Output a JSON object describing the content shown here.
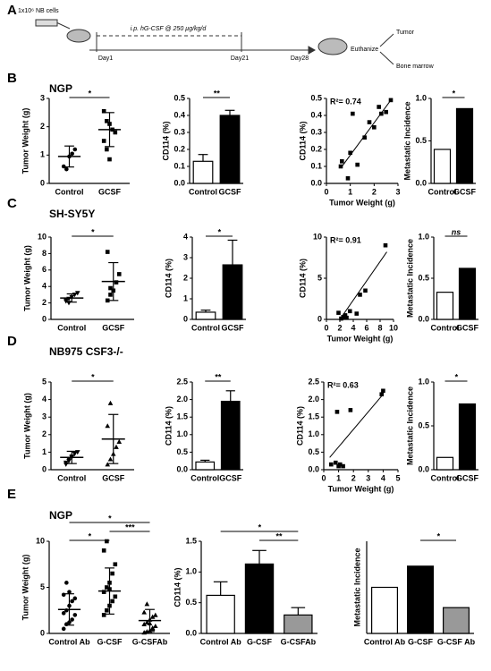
{
  "schematic": {
    "label": "A",
    "cells": "1x10⁶ NB cells",
    "treatment": "i.p. hG-CSF @ 250 µg/kg/d",
    "days": [
      "Day1",
      "Day21",
      "Day28"
    ],
    "endpoint": "Euthanize",
    "outcomes": [
      "Tumor",
      "Bone marrow"
    ]
  },
  "panels": [
    {
      "label": "B",
      "title": "NGP"
    },
    {
      "label": "C",
      "title": "SH-SY5Y"
    },
    {
      "label": "D",
      "title": "NB975 CSF3-/-"
    },
    {
      "label": "E",
      "title": "NGP"
    }
  ],
  "chart_data": [
    {
      "type": "dot",
      "ylabel": "Tumor Weight (g)",
      "categories": [
        "Control",
        "GCSF"
      ],
      "markers": [
        "circle",
        "square"
      ],
      "points": [
        [
          0.6,
          0.5,
          0.95,
          1.05,
          1.2
        ],
        [
          2.55,
          2.2,
          2.1,
          1.9,
          1.8,
          1.5,
          1.2,
          0.85
        ]
      ],
      "means": [
        0.95,
        1.9
      ],
      "sd": [
        0.37,
        0.6
      ],
      "ylim": [
        0,
        3
      ],
      "yticks": [
        0,
        1,
        2,
        3
      ],
      "significance": [
        {
          "text": "*",
          "between": [
            "Control",
            "GCSF"
          ]
        }
      ]
    },
    {
      "type": "bar",
      "ylabel": "CD114 (%)",
      "categories": [
        "Control",
        "GCSF"
      ],
      "values": [
        0.13,
        0.4
      ],
      "errors": [
        0.04,
        0.03
      ],
      "colors": [
        "#ffffff",
        "#000000"
      ],
      "ylim": [
        0,
        0.5
      ],
      "yticks": [
        {
          "value": 0,
          "label": "0.0"
        },
        0.1,
        0.2,
        0.3,
        0.4,
        0.5
      ],
      "significance": [
        {
          "text": "**",
          "between": [
            "Control",
            "GCSF"
          ]
        }
      ]
    },
    {
      "type": "scatter",
      "ylabel": "CD114 (%)",
      "xlabel": "Tumor Weight (g)",
      "annotation": "R²= 0.74",
      "marker": "square",
      "x": [
        0.6,
        0.65,
        0.9,
        1.0,
        1.1,
        1.3,
        1.6,
        1.8,
        2.0,
        2.2,
        2.3,
        2.5,
        2.7
      ],
      "y": [
        0.1,
        0.13,
        0.03,
        0.18,
        0.41,
        0.11,
        0.27,
        0.36,
        0.33,
        0.45,
        0.41,
        0.42,
        0.49
      ],
      "fit": {
        "x": [
          0.6,
          2.7
        ],
        "y": [
          0.09,
          0.49
        ]
      },
      "xlim": [
        0,
        3
      ],
      "xticks": [
        0,
        1,
        2,
        3
      ],
      "ylim": [
        0,
        0.5
      ],
      "yticks": [
        {
          "value": 0,
          "label": "0.0"
        },
        0.1,
        0.2,
        0.3,
        0.4,
        0.5
      ]
    },
    {
      "type": "bar",
      "ylabel": "Metastatic Incidence",
      "categories": [
        "Control",
        "GCSF"
      ],
      "values": [
        0.4,
        0.88
      ],
      "colors": [
        "#ffffff",
        "#000000"
      ],
      "ylim": [
        0,
        1
      ],
      "yticks": [
        {
          "value": 0,
          "label": "0.0"
        },
        0.5,
        {
          "value": 1,
          "label": "1.0"
        }
      ],
      "significance": [
        {
          "text": "*",
          "between": [
            "Control",
            "GCSF"
          ]
        }
      ]
    },
    {
      "type": "dot",
      "ylabel": "Tumor Weight (g)",
      "categories": [
        "Control",
        "GCSF"
      ],
      "markers": [
        "triangle-down",
        "square"
      ],
      "points": [
        [
          2.2,
          2.5,
          2.7,
          3.0,
          3.2,
          2.4,
          2.0
        ],
        [
          2.3,
          3.0,
          3.5,
          4.5,
          5.5,
          8.2,
          3.8
        ]
      ],
      "means": [
        2.6,
        4.6
      ],
      "sd": [
        0.5,
        2.3
      ],
      "ylim": [
        0,
        10
      ],
      "yticks": [
        0,
        2,
        4,
        6,
        8,
        10
      ],
      "significance": [
        {
          "text": "*",
          "between": [
            "Control",
            "GCSF"
          ]
        }
      ]
    },
    {
      "type": "bar",
      "ylabel": "CD114 (%)",
      "categories": [
        "Control",
        "GCSF"
      ],
      "values": [
        0.35,
        2.65
      ],
      "errors": [
        0.1,
        1.2
      ],
      "colors": [
        "#ffffff",
        "#000000"
      ],
      "ylim": [
        0,
        4
      ],
      "yticks": [
        0,
        1,
        2,
        3,
        4
      ],
      "significance": [
        {
          "text": "*",
          "between": [
            "Control",
            "GCSF"
          ]
        }
      ]
    },
    {
      "type": "scatter",
      "ylabel": "CD114 (%)",
      "xlabel": "Tumor Weight (g)",
      "annotation": "R²= 0.91",
      "marker": "square",
      "x": [
        1.8,
        2.2,
        2.5,
        2.8,
        3.0,
        3.5,
        4.5,
        5.0,
        5.8,
        8.8
      ],
      "y": [
        0.8,
        0.1,
        0.3,
        0.5,
        0.2,
        1.0,
        0.7,
        3.0,
        3.5,
        9.0
      ],
      "fit": {
        "x": [
          2,
          9
        ],
        "y": [
          0,
          8.2
        ]
      },
      "xlim": [
        0,
        10
      ],
      "xticks": [
        0,
        2,
        4,
        6,
        8,
        10
      ],
      "ylim": [
        0,
        10
      ],
      "yticks": [
        0,
        5,
        10
      ]
    },
    {
      "type": "bar",
      "ylabel": "Metastatic Incidence",
      "categories": [
        "Control",
        "GCSF"
      ],
      "values": [
        0.33,
        0.62
      ],
      "colors": [
        "#ffffff",
        "#000000"
      ],
      "ylim": [
        0,
        1
      ],
      "yticks": [
        {
          "value": 0,
          "label": "0.0"
        },
        0.5,
        {
          "value": 1,
          "label": "1.0"
        }
      ],
      "significance": [
        {
          "text": "ns",
          "between": [
            "Control",
            "GCSF"
          ]
        }
      ]
    },
    {
      "type": "dot",
      "ylabel": "Tumor Weight (g)",
      "categories": [
        "Control",
        "GCSF"
      ],
      "markers": [
        "triangle-down",
        "triangle"
      ],
      "points": [
        [
          0.3,
          0.5,
          0.7,
          0.9,
          1.0,
          0.4,
          0.6,
          0.75
        ],
        [
          0.3,
          0.6,
          0.9,
          1.3,
          1.6,
          2.5,
          3.8
        ]
      ],
      "means": [
        0.7,
        1.75
      ],
      "sd": [
        0.35,
        1.4
      ],
      "ylim": [
        0,
        5
      ],
      "yticks": [
        0,
        1,
        2,
        3,
        4,
        5
      ],
      "significance": [
        {
          "text": "*",
          "between": [
            "Control",
            "GCSF"
          ]
        }
      ]
    },
    {
      "type": "bar",
      "ylabel": "CD114 (%)",
      "categories": [
        "Control",
        "GCSF"
      ],
      "values": [
        0.22,
        1.95
      ],
      "errors": [
        0.05,
        0.3
      ],
      "colors": [
        "#ffffff",
        "#000000"
      ],
      "ylim": [
        0,
        2.5
      ],
      "yticks": [
        {
          "value": 0,
          "label": "0.0"
        },
        0.5,
        {
          "value": 1,
          "label": "1.0"
        },
        1.5,
        {
          "value": 2,
          "label": "2.0"
        },
        2.5
      ],
      "significance": [
        {
          "text": "**",
          "between": [
            "Control",
            "GCSF"
          ]
        }
      ]
    },
    {
      "type": "scatter",
      "ylabel": "CD114 (%)",
      "xlabel": "Tumor Weight (g)",
      "annotation": "R²= 0.63",
      "marker": "square",
      "x": [
        0.5,
        0.8,
        1.0,
        1.1,
        1.3,
        0.9,
        1.8,
        3.9,
        4.0
      ],
      "y": [
        0.15,
        0.2,
        0.1,
        0.15,
        0.1,
        1.65,
        1.7,
        2.15,
        2.25
      ],
      "fit": {
        "x": [
          0.4,
          4
        ],
        "y": [
          0.35,
          2.15
        ]
      },
      "xlim": [
        0,
        5
      ],
      "xticks": [
        0,
        1,
        2,
        3,
        4,
        5
      ],
      "ylim": [
        0,
        2.5
      ],
      "yticks": [
        {
          "value": 0,
          "label": "0.0"
        },
        0.5,
        {
          "value": 1,
          "label": "1.0"
        },
        1.5,
        {
          "value": 2,
          "label": "2.0"
        },
        2.5
      ]
    },
    {
      "type": "bar",
      "ylabel": "Metastatic Incidence",
      "categories": [
        "Control",
        "GCSF"
      ],
      "values": [
        0.14,
        0.75
      ],
      "colors": [
        "#ffffff",
        "#000000"
      ],
      "ylim": [
        0,
        1
      ],
      "yticks": [
        {
          "value": 0,
          "label": "0.0"
        },
        0.5,
        {
          "value": 1,
          "label": "1.0"
        }
      ],
      "significance": [
        {
          "text": "*",
          "between": [
            "Control",
            "GCSF"
          ]
        }
      ]
    },
    {
      "type": "dot",
      "ylabel": "Tumor Weight (g)",
      "categories": [
        "Control Ab",
        "G-CSF",
        "G-CSFAb"
      ],
      "markers": [
        "circle",
        "square",
        "triangle"
      ],
      "points": [
        [
          0.5,
          1.0,
          1.2,
          1.5,
          2.0,
          2.2,
          2.5,
          3.0,
          3.5,
          3.8,
          4.2,
          5.5,
          4.5
        ],
        [
          2.0,
          2.5,
          3.0,
          3.5,
          4.0,
          4.5,
          5.0,
          5.5,
          6.5,
          7.5,
          9.0,
          10.0,
          4.8
        ],
        [
          0.1,
          0.2,
          0.3,
          0.5,
          0.8,
          1.0,
          1.2,
          1.5,
          1.8,
          2.0,
          2.3,
          3.2,
          1.1,
          0.6
        ]
      ],
      "means": [
        2.6,
        4.6,
        1.4
      ],
      "sd": [
        1.7,
        2.5,
        1.2
      ],
      "ylim": [
        0,
        10
      ],
      "yticks": [
        0,
        5,
        10
      ],
      "significance": [
        {
          "text": "*",
          "between": [
            "Control Ab",
            "G-CSF"
          ]
        },
        {
          "text": "***",
          "between": [
            "G-CSF",
            "G-CSFAb"
          ]
        },
        {
          "text": "*",
          "between": [
            "Control Ab",
            "G-CSFAb"
          ]
        }
      ]
    },
    {
      "type": "bar",
      "ylabel": "CD114 (%)",
      "categories": [
        "Control Ab",
        "G-CSF",
        "G-CSFAb"
      ],
      "values": [
        0.62,
        1.13,
        0.3
      ],
      "errors": [
        0.22,
        0.22,
        0.12
      ],
      "colors": [
        "#ffffff",
        "#000000",
        "#999999"
      ],
      "ylim": [
        0,
        1.5
      ],
      "yticks": [
        {
          "value": 0,
          "label": "0.0"
        },
        0.5,
        {
          "value": 1,
          "label": "1.0"
        },
        1.5
      ],
      "significance": [
        {
          "text": "**",
          "between": [
            "G-CSF",
            "G-CSFAb"
          ]
        },
        {
          "text": "*",
          "between": [
            "Control Ab",
            "G-CSFAb"
          ]
        }
      ]
    },
    {
      "type": "bar",
      "ylabel": "Metastatic Incidence",
      "categories": [
        "Control Ab",
        "G-CSF",
        "G-CSF Ab"
      ],
      "values": [
        0.5,
        0.73,
        0.28
      ],
      "colors": [
        "#ffffff",
        "#000000",
        "#999999"
      ],
      "ylim": [
        0,
        1
      ],
      "significance": [
        {
          "text": "*",
          "between": [
            "G-CSF",
            "G-CSF Ab"
          ]
        }
      ]
    }
  ]
}
